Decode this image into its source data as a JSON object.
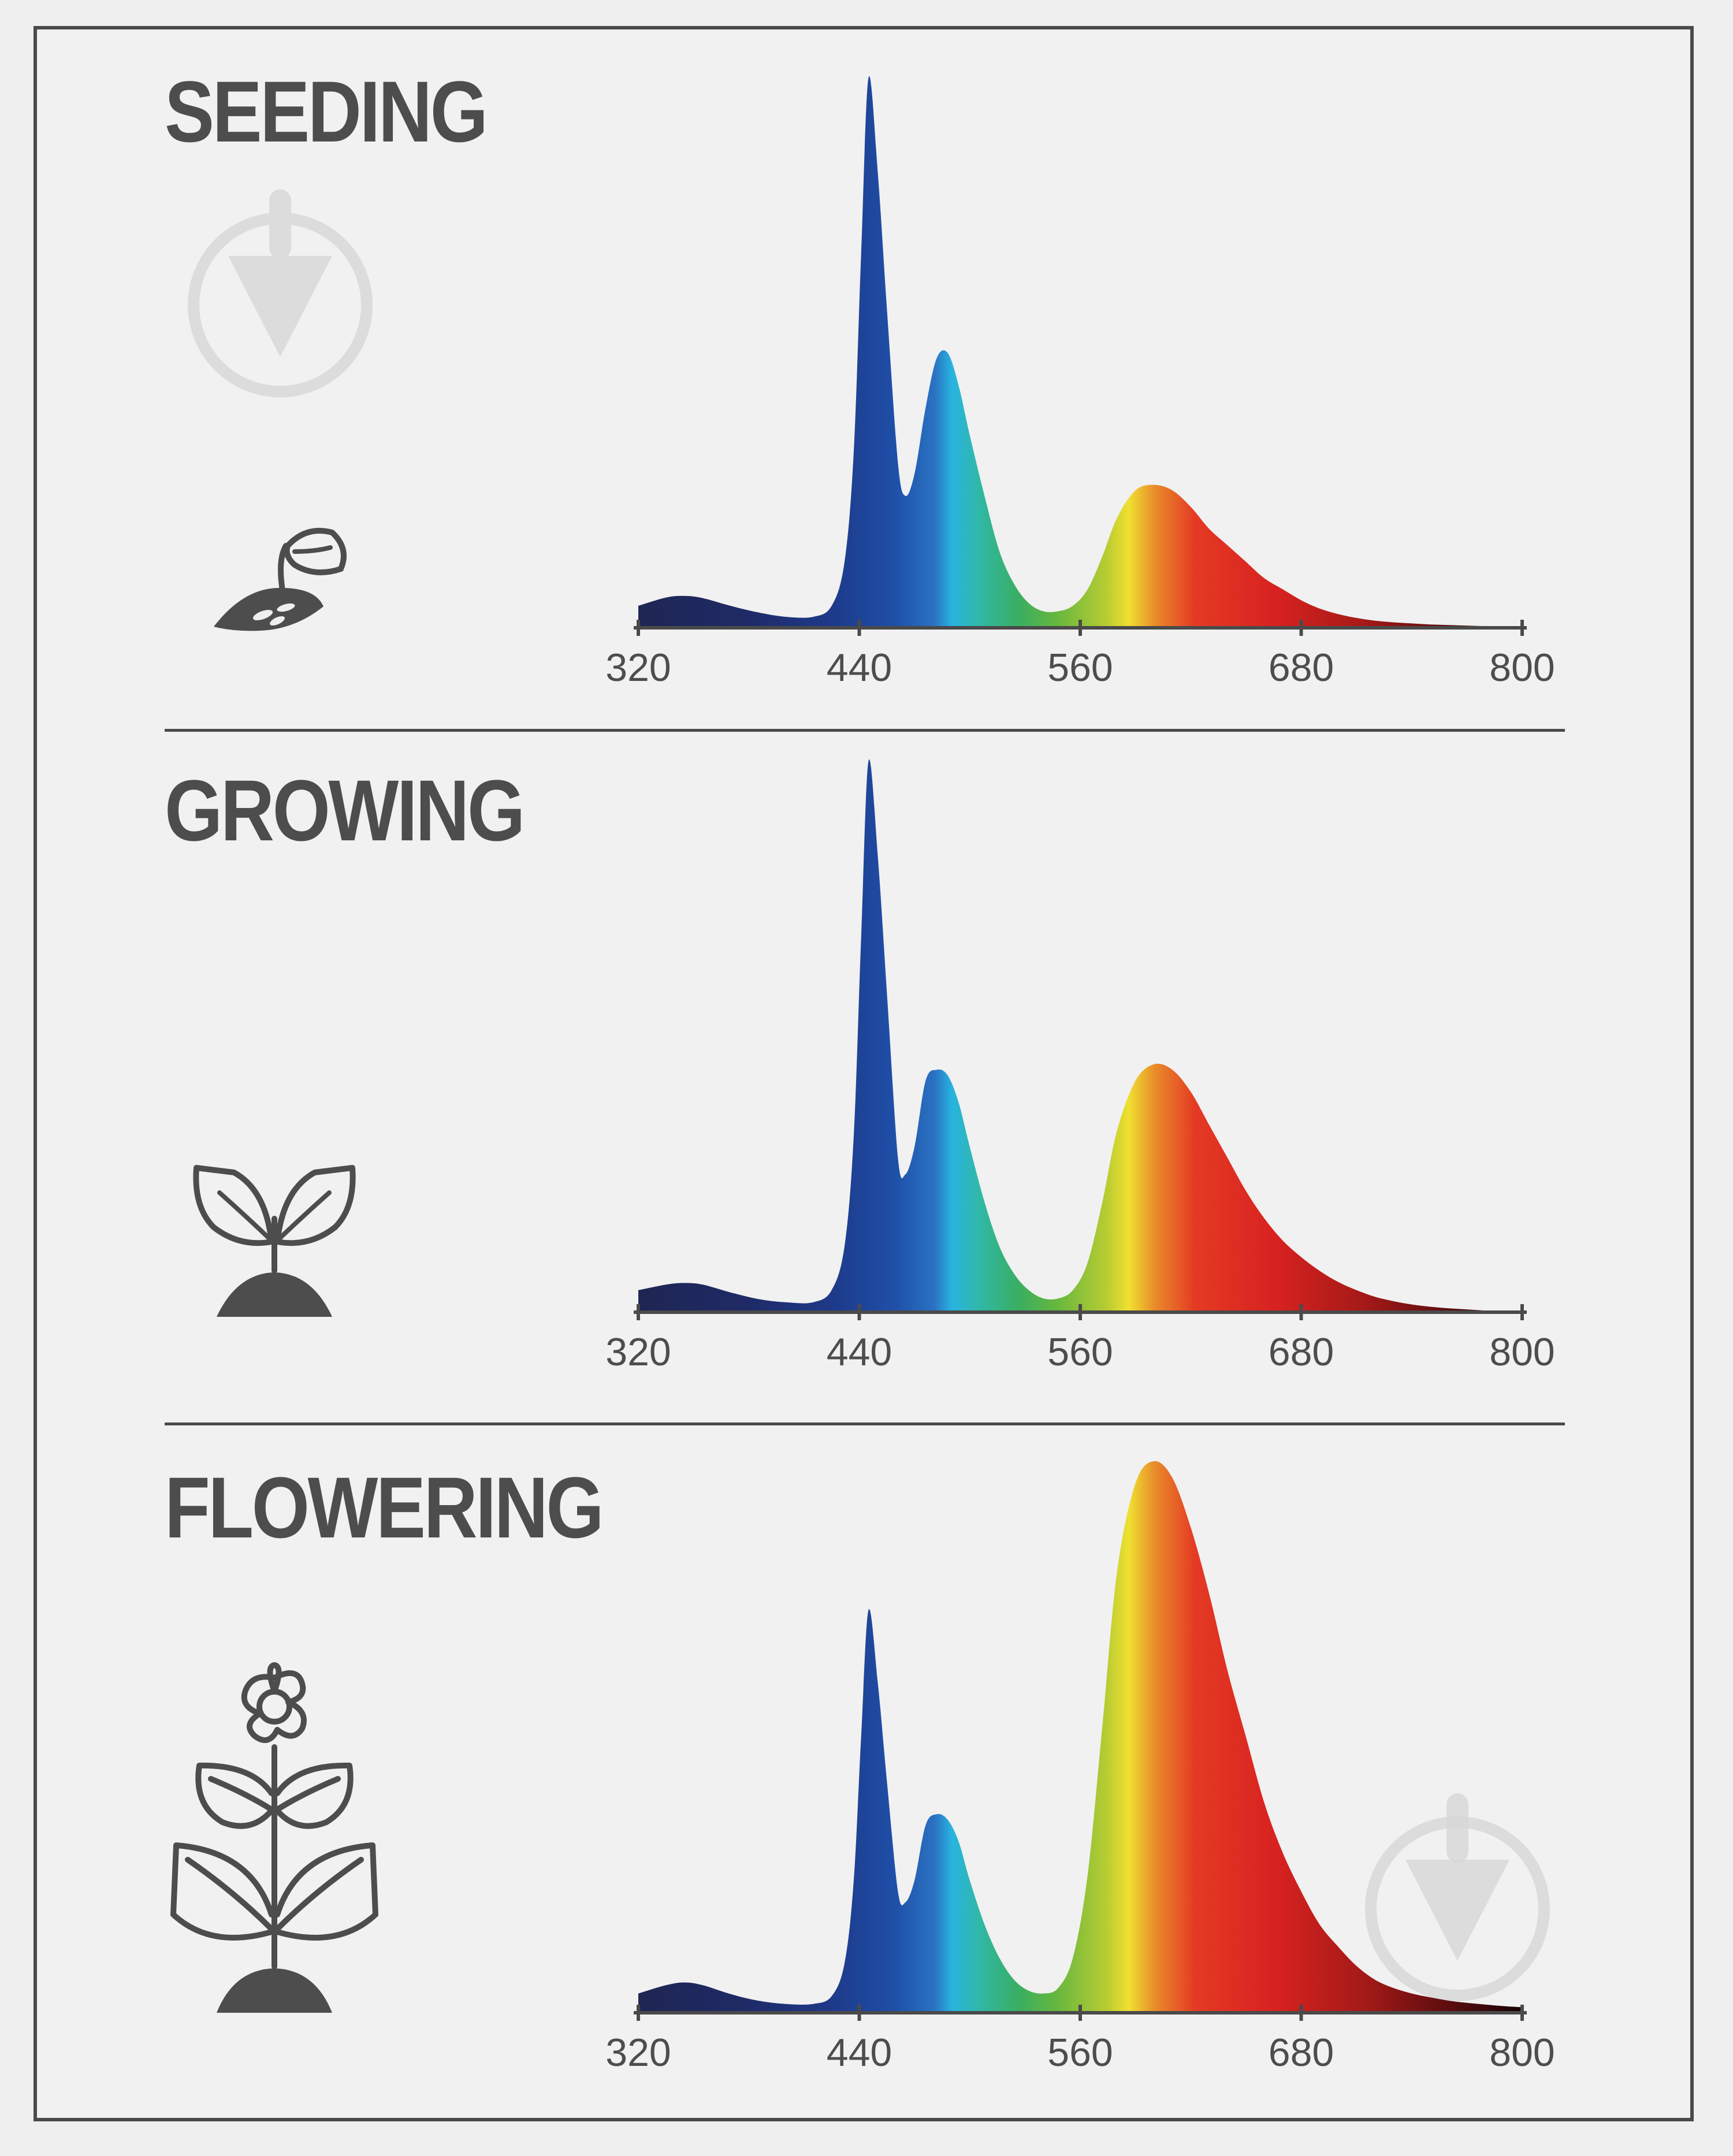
{
  "colors": {
    "text": "#4d4d4d",
    "frame": "#4a4a4a",
    "background": "#efefef"
  },
  "icons": [
    "sprouting-seed-icon",
    "seedling-icon",
    "flowering-plant-icon",
    "watermark-icon"
  ],
  "chart_data": [
    {
      "type": "area",
      "title": "SEEDING",
      "xlabel": "",
      "ylabel": "",
      "xlim": [
        320,
        800
      ],
      "ylim": [
        0,
        1
      ],
      "x_ticks": [
        "320",
        "440",
        "560",
        "680",
        "800"
      ],
      "grid": false,
      "series": [
        {
          "x": [
            320,
            335,
            345,
            355,
            370,
            385,
            400,
            415,
            425,
            432,
            437,
            441,
            445,
            450,
            455,
            461,
            465,
            470,
            476,
            482,
            488,
            494,
            500,
            508,
            516,
            524,
            532,
            540,
            548,
            556,
            564,
            572,
            580,
            590,
            600,
            610,
            620,
            630,
            640,
            650,
            660,
            670,
            680,
            690,
            700,
            710,
            720,
            730,
            740,
            750,
            760,
            770,
            780,
            790,
            800
          ],
          "values": [
            0.04,
            0.055,
            0.058,
            0.054,
            0.04,
            0.028,
            0.02,
            0.02,
            0.04,
            0.12,
            0.32,
            0.68,
            1.0,
            0.83,
            0.58,
            0.3,
            0.24,
            0.28,
            0.4,
            0.49,
            0.5,
            0.44,
            0.35,
            0.24,
            0.14,
            0.08,
            0.045,
            0.03,
            0.03,
            0.04,
            0.07,
            0.13,
            0.2,
            0.25,
            0.26,
            0.25,
            0.22,
            0.18,
            0.15,
            0.12,
            0.09,
            0.07,
            0.05,
            0.035,
            0.025,
            0.018,
            0.013,
            0.01,
            0.008,
            0.006,
            0.005,
            0.004,
            0.003,
            0.002,
            0.0
          ]
        }
      ]
    },
    {
      "type": "area",
      "title": "GROWING",
      "xlabel": "",
      "ylabel": "",
      "xlim": [
        320,
        800
      ],
      "ylim": [
        0,
        1
      ],
      "x_ticks": [
        "320",
        "440",
        "560",
        "680",
        "800"
      ],
      "grid": false,
      "series": [
        {
          "x": [
            320,
            335,
            345,
            355,
            370,
            385,
            400,
            415,
            425,
            432,
            437,
            441,
            445,
            450,
            455,
            461,
            465,
            470,
            476,
            482,
            488,
            494,
            500,
            508,
            516,
            524,
            532,
            540,
            548,
            556,
            564,
            572,
            580,
            590,
            600,
            610,
            620,
            630,
            640,
            650,
            660,
            670,
            680,
            690,
            700,
            710,
            720,
            730,
            740,
            750,
            760,
            770,
            780,
            790,
            800
          ],
          "values": [
            0.04,
            0.05,
            0.053,
            0.05,
            0.036,
            0.024,
            0.018,
            0.018,
            0.04,
            0.12,
            0.32,
            0.68,
            1.0,
            0.83,
            0.58,
            0.28,
            0.25,
            0.3,
            0.42,
            0.44,
            0.43,
            0.38,
            0.3,
            0.2,
            0.12,
            0.07,
            0.04,
            0.025,
            0.025,
            0.04,
            0.09,
            0.2,
            0.33,
            0.42,
            0.45,
            0.44,
            0.4,
            0.34,
            0.28,
            0.22,
            0.17,
            0.13,
            0.1,
            0.075,
            0.055,
            0.04,
            0.028,
            0.02,
            0.014,
            0.01,
            0.007,
            0.005,
            0.003,
            0.002,
            0.0
          ]
        }
      ]
    },
    {
      "type": "area",
      "title": "FLOWERING",
      "xlabel": "",
      "ylabel": "",
      "xlim": [
        320,
        800
      ],
      "ylim": [
        0,
        1
      ],
      "x_ticks": [
        "320",
        "440",
        "560",
        "680",
        "800"
      ],
      "grid": false,
      "series": [
        {
          "x": [
            320,
            335,
            345,
            355,
            370,
            385,
            400,
            415,
            425,
            432,
            437,
            441,
            445,
            450,
            455,
            461,
            465,
            470,
            476,
            482,
            488,
            494,
            500,
            508,
            516,
            524,
            532,
            540,
            548,
            556,
            564,
            572,
            580,
            590,
            600,
            610,
            620,
            630,
            640,
            650,
            660,
            670,
            680,
            690,
            700,
            710,
            720,
            730,
            740,
            750,
            760,
            770,
            780,
            790,
            800
          ],
          "values": [
            0.035,
            0.05,
            0.055,
            0.05,
            0.034,
            0.022,
            0.016,
            0.016,
            0.03,
            0.09,
            0.24,
            0.5,
            0.73,
            0.6,
            0.42,
            0.22,
            0.2,
            0.24,
            0.34,
            0.36,
            0.35,
            0.31,
            0.24,
            0.16,
            0.1,
            0.06,
            0.04,
            0.035,
            0.045,
            0.1,
            0.25,
            0.52,
            0.8,
            0.96,
            1.0,
            0.97,
            0.88,
            0.76,
            0.62,
            0.5,
            0.38,
            0.29,
            0.22,
            0.16,
            0.12,
            0.085,
            0.06,
            0.045,
            0.035,
            0.028,
            0.022,
            0.018,
            0.015,
            0.012,
            0.01
          ]
        }
      ]
    }
  ]
}
